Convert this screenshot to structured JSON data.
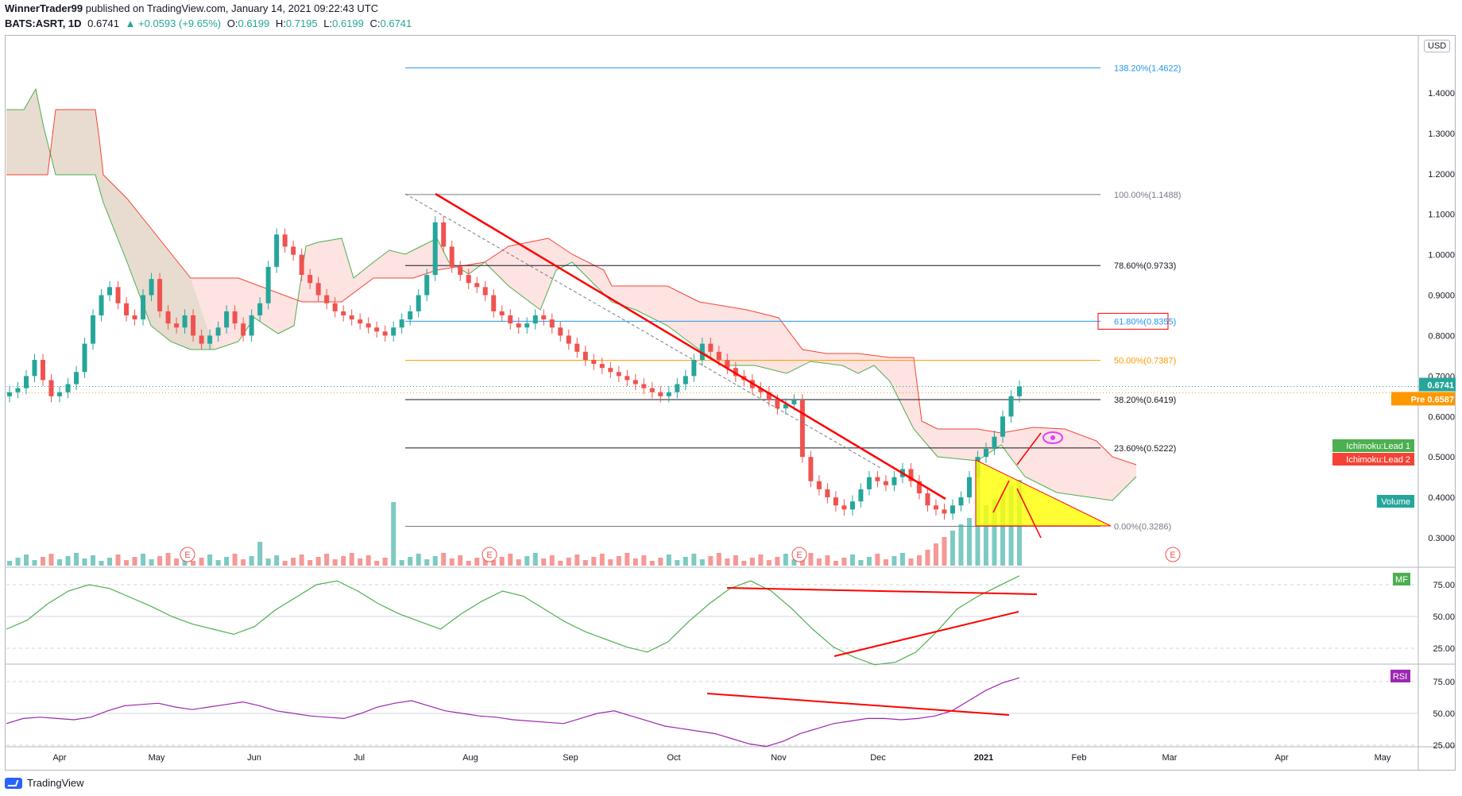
{
  "header": {
    "publisher": "WinnerTrader99",
    "published_text": "published on TradingView.com, January 14, 2021 09:22:43 UTC",
    "symbol": "BATS:ASRT, 1D",
    "last": "0.6741",
    "change": "▲ +0.0593 (+9.65%)",
    "o_label": "O:",
    "o": "0.6199",
    "h_label": "H:",
    "h": "0.7195",
    "l_label": "L:",
    "l": "0.6199",
    "c_label": "C:",
    "c": "0.6741"
  },
  "currency": "USD",
  "footer": {
    "brand": "TradingView"
  },
  "colors": {
    "up": "#26a69a",
    "down": "#ef5350",
    "cloud_bull": "#4caf50",
    "cloud_bear": "#f44336",
    "mf": "#4caf50",
    "rsi": "#9c27b0",
    "trend": "#ff0000",
    "triangle": "#ffff00"
  },
  "chart_data": [
    {
      "type": "candlestick",
      "price_axis": {
        "min": 0.3,
        "max": 1.4,
        "ticks": [
          "1.4000",
          "1.3000",
          "1.2000",
          "1.1000",
          "1.0000",
          "0.9000",
          "0.8000",
          "0.7000",
          "0.6000",
          "0.5000",
          "0.4000",
          "0.3000"
        ]
      },
      "time_axis": [
        "Apr",
        "May",
        "Jun",
        "Jul",
        "Aug",
        "Sep",
        "Oct",
        "Nov",
        "Dec",
        "2021",
        "Feb",
        "Mar",
        "Apr",
        "May"
      ],
      "fib_levels": [
        {
          "label": "138.20%(1.4622)",
          "value": 1.4622,
          "color": "#2196f3"
        },
        {
          "label": "100.00%(1.1488)",
          "value": 1.1488,
          "color": "#787b86"
        },
        {
          "label": "78.60%(0.9733)",
          "value": 0.9733,
          "color": "#131722"
        },
        {
          "label": "61.80%(0.8355)",
          "value": 0.8355,
          "color": "#2196f3"
        },
        {
          "label": "50.00%(0.7387)",
          "value": 0.7387,
          "color": "#ff9800"
        },
        {
          "label": "38.20%(0.6419)",
          "value": 0.6419,
          "color": "#131722"
        },
        {
          "label": "23.60%(0.5222)",
          "value": 0.5222,
          "color": "#131722"
        },
        {
          "label": "0.00%(0.3286)",
          "value": 0.3286,
          "color": "#787b86"
        }
      ],
      "price_labels": [
        {
          "text": "0.6741",
          "value": 0.6741,
          "color": "#26a69a"
        },
        {
          "text": "Pre 0.6587",
          "value": 0.6587,
          "color": "#ff9800"
        }
      ],
      "legend_tags": [
        "Ichimoku:Lead 1",
        "Ichimoku:Lead 2",
        "Volume"
      ],
      "earnings_markers": [
        "E",
        "E",
        "E",
        "E"
      ],
      "closes": [
        0.66,
        0.67,
        0.7,
        0.74,
        0.69,
        0.65,
        0.66,
        0.68,
        0.71,
        0.78,
        0.85,
        0.9,
        0.92,
        0.88,
        0.85,
        0.84,
        0.9,
        0.94,
        0.86,
        0.83,
        0.82,
        0.85,
        0.8,
        0.78,
        0.8,
        0.82,
        0.86,
        0.83,
        0.8,
        0.85,
        0.88,
        0.97,
        1.05,
        1.02,
        1.0,
        0.95,
        0.93,
        0.9,
        0.88,
        0.86,
        0.85,
        0.84,
        0.83,
        0.82,
        0.81,
        0.8,
        0.82,
        0.84,
        0.86,
        0.9,
        0.95,
        1.08,
        1.02,
        0.97,
        0.95,
        0.93,
        0.92,
        0.9,
        0.86,
        0.85,
        0.83,
        0.82,
        0.83,
        0.85,
        0.84,
        0.82,
        0.8,
        0.78,
        0.76,
        0.74,
        0.73,
        0.72,
        0.71,
        0.7,
        0.69,
        0.68,
        0.67,
        0.66,
        0.65,
        0.66,
        0.68,
        0.7,
        0.74,
        0.78,
        0.76,
        0.74,
        0.72,
        0.7,
        0.69,
        0.67,
        0.66,
        0.64,
        0.62,
        0.63,
        0.64,
        0.5,
        0.44,
        0.42,
        0.4,
        0.38,
        0.37,
        0.39,
        0.42,
        0.45,
        0.44,
        0.43,
        0.45,
        0.47,
        0.44,
        0.41,
        0.38,
        0.37,
        0.36,
        0.38,
        0.4,
        0.45,
        0.5,
        0.52,
        0.55,
        0.6,
        0.65,
        0.6741
      ],
      "mf": {
        "ticks": [
          "75.00",
          "50.00",
          "25.00"
        ],
        "values": [
          40,
          47,
          60,
          70,
          75,
          72,
          65,
          58,
          50,
          44,
          40,
          36,
          42,
          55,
          65,
          75,
          78,
          70,
          60,
          52,
          46,
          40,
          52,
          62,
          70,
          66,
          56,
          46,
          38,
          32,
          26,
          22,
          30,
          46,
          60,
          72,
          78,
          70,
          56,
          40,
          26,
          18,
          12,
          14,
          22,
          38,
          56,
          66,
          74,
          82
        ]
      },
      "rsi": {
        "ticks": [
          "75.00",
          "50.00",
          "25.00"
        ],
        "values": [
          42,
          46,
          47,
          46,
          45,
          47,
          52,
          56,
          57,
          58,
          55,
          53,
          55,
          57,
          59,
          56,
          52,
          50,
          48,
          47,
          46,
          50,
          55,
          58,
          60,
          56,
          52,
          50,
          48,
          47,
          45,
          44,
          43,
          42,
          46,
          50,
          52,
          48,
          44,
          40,
          38,
          36,
          34,
          30,
          26,
          24,
          28,
          34,
          38,
          42,
          44,
          46,
          46,
          45,
          46,
          48,
          52,
          60,
          68,
          74,
          78
        ]
      }
    }
  ]
}
